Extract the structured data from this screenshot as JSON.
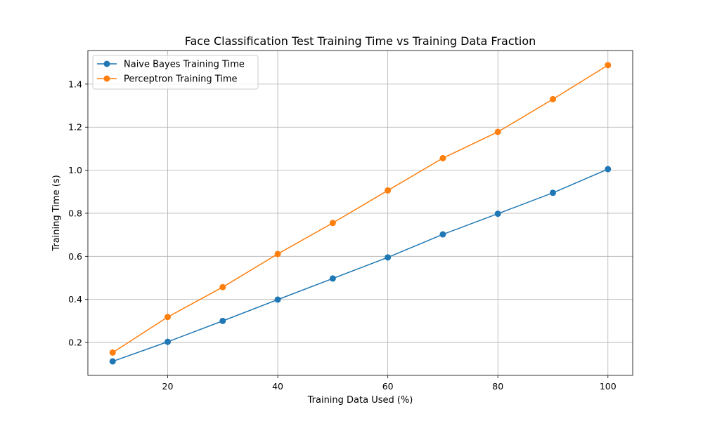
{
  "chart_data": {
    "type": "line",
    "title": "Face Classification Test Training Time vs Training Data Fraction",
    "xlabel": "Training Data Used (%)",
    "ylabel": "Training Time (s)",
    "xlim": [
      5.5,
      104.5
    ],
    "ylim": [
      0.047,
      1.556
    ],
    "xticks": [
      20,
      40,
      60,
      80,
      100
    ],
    "yticks": [
      0.2,
      0.4,
      0.6,
      0.8,
      1.0,
      1.2,
      1.4
    ],
    "grid": true,
    "legend_position": "top-left",
    "x": [
      10,
      20,
      30,
      40,
      50,
      60,
      70,
      80,
      90,
      100
    ],
    "series": [
      {
        "name": "Naive Bayes Training Time",
        "color": "#1f77b4",
        "marker": "circle",
        "values": [
          0.112,
          0.203,
          0.3,
          0.399,
          0.497,
          0.595,
          0.702,
          0.798,
          0.895,
          1.005
        ]
      },
      {
        "name": "Perceptron Training Time",
        "color": "#ff7f0e",
        "marker": "circle",
        "values": [
          0.153,
          0.318,
          0.457,
          0.611,
          0.755,
          0.906,
          1.056,
          1.178,
          1.33,
          1.488
        ]
      }
    ]
  }
}
